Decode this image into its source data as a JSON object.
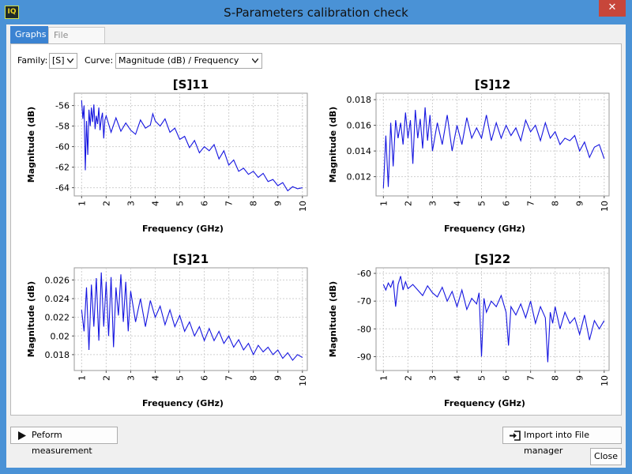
{
  "window": {
    "title": "S-Parameters calibration check",
    "app_icon_text": "IQ"
  },
  "tabs": [
    {
      "label": "Graphs",
      "active": true
    },
    {
      "label": "File content",
      "active": false
    }
  ],
  "filters": {
    "family_label": "Family:",
    "family_value": "[S]",
    "curve_label": "Curve:",
    "curve_value": "Magnitude (dB) / Frequency"
  },
  "buttons": {
    "measure_label": "Peform measurement",
    "import_label": "Import into File manager",
    "close_label": "Close"
  },
  "chart_data": [
    {
      "type": "line",
      "title": "[S]11",
      "xlabel": "Frequency (GHz)",
      "ylabel": "Magnitude (dB)",
      "xlim": [
        0.7,
        10.2
      ],
      "ylim": [
        -64.8,
        -54.8
      ],
      "xticks": [
        1,
        2,
        3,
        4,
        5,
        6,
        7,
        8,
        9,
        10
      ],
      "yticks": [
        -56,
        -58,
        -60,
        -62,
        -64
      ],
      "grid": true,
      "series": [
        {
          "color": "#1515e0",
          "x": [
            1.0,
            1.05,
            1.1,
            1.15,
            1.2,
            1.25,
            1.3,
            1.35,
            1.4,
            1.45,
            1.5,
            1.55,
            1.6,
            1.65,
            1.7,
            1.75,
            1.8,
            1.85,
            1.9,
            1.95,
            2.0,
            2.2,
            2.4,
            2.6,
            2.8,
            3.0,
            3.2,
            3.4,
            3.6,
            3.8,
            3.9,
            4.0,
            4.2,
            4.4,
            4.6,
            4.8,
            5.0,
            5.2,
            5.4,
            5.6,
            5.8,
            6.0,
            6.2,
            6.4,
            6.6,
            6.8,
            7.0,
            7.2,
            7.4,
            7.6,
            7.8,
            8.0,
            8.2,
            8.4,
            8.6,
            8.8,
            9.0,
            9.2,
            9.4,
            9.6,
            9.8,
            10.0
          ],
          "y": [
            -55.5,
            -57.3,
            -56.0,
            -62.3,
            -57.5,
            -60.8,
            -56.4,
            -58.0,
            -56.2,
            -57.6,
            -55.9,
            -58.3,
            -57.0,
            -57.8,
            -56.2,
            -58.4,
            -57.3,
            -56.7,
            -59.2,
            -57.4,
            -57.0,
            -58.6,
            -57.2,
            -58.5,
            -57.7,
            -58.4,
            -58.8,
            -57.4,
            -58.2,
            -57.9,
            -56.8,
            -57.5,
            -58.0,
            -57.3,
            -58.6,
            -58.2,
            -59.3,
            -59.0,
            -60.1,
            -59.4,
            -60.6,
            -60.0,
            -60.4,
            -59.8,
            -61.2,
            -60.4,
            -61.8,
            -61.3,
            -62.4,
            -62.1,
            -62.7,
            -62.4,
            -63.0,
            -62.6,
            -63.4,
            -63.2,
            -63.8,
            -63.5,
            -64.3,
            -63.9,
            -64.1,
            -64.0
          ]
        }
      ]
    },
    {
      "type": "line",
      "title": "[S]12",
      "xlabel": "Frequency (GHz)",
      "ylabel": "Magnitude (dB)",
      "xlim": [
        0.7,
        10.2
      ],
      "ylim": [
        0.0105,
        0.0185
      ],
      "xticks": [
        1,
        2,
        3,
        4,
        5,
        6,
        7,
        8,
        9,
        10
      ],
      "yticks": [
        0.018,
        0.016,
        0.014,
        0.012
      ],
      "grid": true,
      "series": [
        {
          "color": "#1515e0",
          "x": [
            1.0,
            1.1,
            1.2,
            1.3,
            1.4,
            1.5,
            1.6,
            1.7,
            1.8,
            1.9,
            2.0,
            2.1,
            2.2,
            2.3,
            2.4,
            2.5,
            2.6,
            2.7,
            2.8,
            2.9,
            3.0,
            3.2,
            3.4,
            3.6,
            3.8,
            4.0,
            4.2,
            4.4,
            4.6,
            4.8,
            5.0,
            5.2,
            5.4,
            5.6,
            5.8,
            6.0,
            6.2,
            6.4,
            6.6,
            6.8,
            7.0,
            7.2,
            7.4,
            7.6,
            7.8,
            8.0,
            8.2,
            8.4,
            8.6,
            8.8,
            9.0,
            9.2,
            9.4,
            9.6,
            9.8,
            10.0
          ],
          "y": [
            0.0111,
            0.0152,
            0.0112,
            0.0162,
            0.0128,
            0.0164,
            0.015,
            0.0162,
            0.0145,
            0.017,
            0.015,
            0.0164,
            0.013,
            0.0172,
            0.015,
            0.0165,
            0.0142,
            0.0174,
            0.0148,
            0.0168,
            0.014,
            0.0162,
            0.0145,
            0.0168,
            0.014,
            0.016,
            0.0145,
            0.0166,
            0.015,
            0.0158,
            0.015,
            0.0168,
            0.0148,
            0.0162,
            0.015,
            0.016,
            0.0152,
            0.0158,
            0.0148,
            0.0164,
            0.0155,
            0.016,
            0.0148,
            0.0162,
            0.015,
            0.0155,
            0.0145,
            0.015,
            0.0148,
            0.0152,
            0.014,
            0.0147,
            0.0135,
            0.0143,
            0.0145,
            0.0134
          ]
        }
      ]
    },
    {
      "type": "line",
      "title": "[S]21",
      "xlabel": "Frequency (GHz)",
      "ylabel": "Magnitude (dB)",
      "xlim": [
        0.7,
        10.2
      ],
      "ylim": [
        0.0163,
        0.0273
      ],
      "xticks": [
        1,
        2,
        3,
        4,
        5,
        6,
        7,
        8,
        9,
        10
      ],
      "yticks": [
        0.026,
        0.024,
        0.022,
        0.02,
        0.018
      ],
      "grid": true,
      "series": [
        {
          "color": "#1515e0",
          "x": [
            1.0,
            1.1,
            1.2,
            1.3,
            1.4,
            1.5,
            1.6,
            1.7,
            1.8,
            1.9,
            2.0,
            2.1,
            2.2,
            2.3,
            2.4,
            2.5,
            2.6,
            2.7,
            2.8,
            2.9,
            3.0,
            3.2,
            3.4,
            3.6,
            3.8,
            4.0,
            4.2,
            4.4,
            4.6,
            4.8,
            5.0,
            5.2,
            5.4,
            5.6,
            5.8,
            6.0,
            6.2,
            6.4,
            6.6,
            6.8,
            7.0,
            7.2,
            7.4,
            7.6,
            7.8,
            8.0,
            8.2,
            8.4,
            8.6,
            8.8,
            9.0,
            9.2,
            9.4,
            9.6,
            9.8,
            10.0
          ],
          "y": [
            0.0228,
            0.0205,
            0.0252,
            0.0185,
            0.0255,
            0.021,
            0.0262,
            0.0195,
            0.0268,
            0.021,
            0.0258,
            0.02,
            0.0263,
            0.0188,
            0.0252,
            0.0222,
            0.0266,
            0.0215,
            0.0258,
            0.0205,
            0.0248,
            0.0215,
            0.024,
            0.021,
            0.0238,
            0.022,
            0.0232,
            0.0212,
            0.0228,
            0.021,
            0.0222,
            0.0205,
            0.0215,
            0.02,
            0.021,
            0.0195,
            0.0208,
            0.0195,
            0.0205,
            0.0192,
            0.02,
            0.0188,
            0.0196,
            0.0185,
            0.0192,
            0.018,
            0.019,
            0.0183,
            0.0188,
            0.018,
            0.0185,
            0.0176,
            0.0182,
            0.0174,
            0.018,
            0.0177
          ]
        }
      ]
    },
    {
      "type": "line",
      "title": "[S]22",
      "xlabel": "Frequency (GHz)",
      "ylabel": "Magnitude (dB)",
      "xlim": [
        0.7,
        10.2
      ],
      "ylim": [
        -95,
        -58
      ],
      "xticks": [
        1,
        2,
        3,
        4,
        5,
        6,
        7,
        8,
        9,
        10
      ],
      "yticks": [
        -60,
        -70,
        -80,
        -90
      ],
      "grid": true,
      "series": [
        {
          "color": "#1515e0",
          "x": [
            1.0,
            1.1,
            1.2,
            1.3,
            1.4,
            1.5,
            1.6,
            1.7,
            1.8,
            1.9,
            2.0,
            2.2,
            2.4,
            2.6,
            2.8,
            3.0,
            3.2,
            3.4,
            3.6,
            3.8,
            4.0,
            4.2,
            4.4,
            4.6,
            4.8,
            4.9,
            5.0,
            5.1,
            5.2,
            5.4,
            5.6,
            5.8,
            6.0,
            6.1,
            6.2,
            6.4,
            6.6,
            6.8,
            7.0,
            7.2,
            7.4,
            7.6,
            7.7,
            7.8,
            7.9,
            8.0,
            8.2,
            8.4,
            8.6,
            8.8,
            9.0,
            9.2,
            9.4,
            9.6,
            9.8,
            10.0
          ],
          "y": [
            -64.0,
            -66.0,
            -63.5,
            -65.0,
            -62.5,
            -72.0,
            -64.0,
            -61.0,
            -66.0,
            -63.0,
            -65.5,
            -64.0,
            -66.0,
            -68.0,
            -64.5,
            -67.0,
            -68.5,
            -65.0,
            -70.0,
            -66.5,
            -72.0,
            -66.0,
            -73.0,
            -69.0,
            -71.0,
            -67.0,
            -90.0,
            -69.0,
            -74.0,
            -70.0,
            -72.0,
            -68.0,
            -74.0,
            -86.0,
            -72.0,
            -75.0,
            -71.0,
            -76.0,
            -70.0,
            -78.0,
            -72.0,
            -76.0,
            -92.0,
            -74.0,
            -78.0,
            -72.0,
            -80.0,
            -74.0,
            -78.0,
            -76.0,
            -82.0,
            -75.0,
            -84.0,
            -77.0,
            -80.0,
            -77.0
          ]
        }
      ]
    }
  ]
}
